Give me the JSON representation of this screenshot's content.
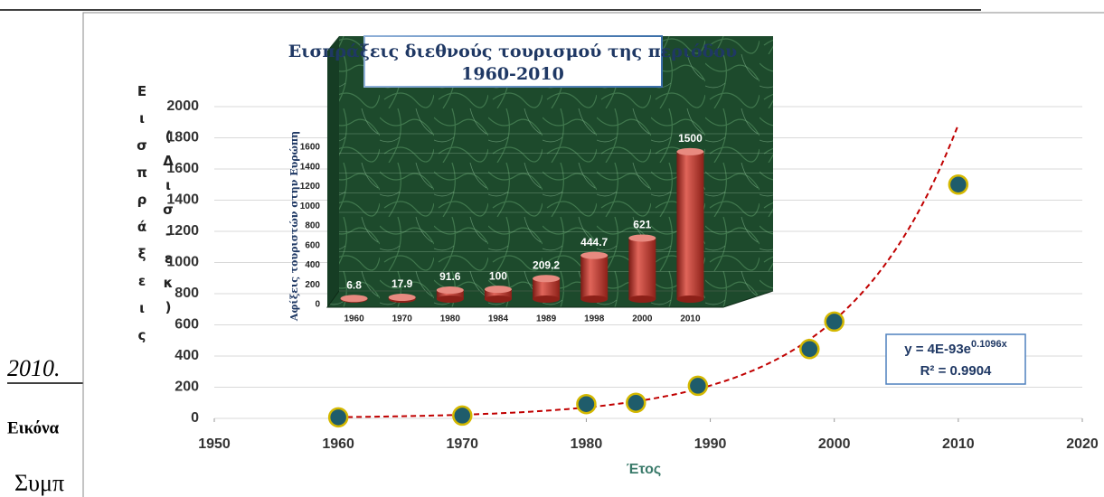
{
  "document": {
    "line_1": "2010.",
    "line_2": "Εικόνα",
    "line_3": "Συμπ"
  },
  "chart_data": [
    {
      "type": "scatter",
      "title": [
        "Εισπράξεις διεθνούς τουρισμού της περιόδου",
        "1960-2010"
      ],
      "x": [
        1960,
        1970,
        1980,
        1984,
        1989,
        1998,
        2000,
        2010
      ],
      "values": [
        6.8,
        17.9,
        91.6,
        100,
        209.2,
        444.7,
        621,
        1500
      ],
      "xlim": [
        1950,
        2020
      ],
      "xticks": [
        1950,
        1960,
        1970,
        1980,
        1990,
        2000,
        2010,
        2020
      ],
      "ylim": [
        0,
        2000
      ],
      "yticks": [
        0,
        200,
        400,
        600,
        800,
        1000,
        1200,
        1400,
        1600,
        1800,
        2000
      ],
      "x_label": "Έτος",
      "y_label": [
        "Εισπράξεις",
        "(Δισ-εκ)"
      ],
      "color": "#1f5c6b",
      "grid": true,
      "trendline": {
        "type": "exponential",
        "a": 4e-93,
        "b": 0.1096,
        "color": "#c00000",
        "label": "y = 4E-93e",
        "exponent": "0.1096x",
        "r2_label": "R² = 0.9904"
      }
    },
    {
      "type": "bar",
      "categories": [
        "1960",
        "1970",
        "1980",
        "1984",
        "1989",
        "1998",
        "2000",
        "2010"
      ],
      "values": [
        6.8,
        17.9,
        91.6,
        100,
        209.2,
        444.7,
        621,
        1500
      ],
      "ylim": [
        0,
        1600
      ],
      "yticks": [
        0,
        200,
        400,
        600,
        800,
        1000,
        1200,
        1400,
        1600
      ],
      "y_label": "Αφίξεις τουριστών στην Ευρώπη",
      "color": "#c0392b"
    }
  ]
}
